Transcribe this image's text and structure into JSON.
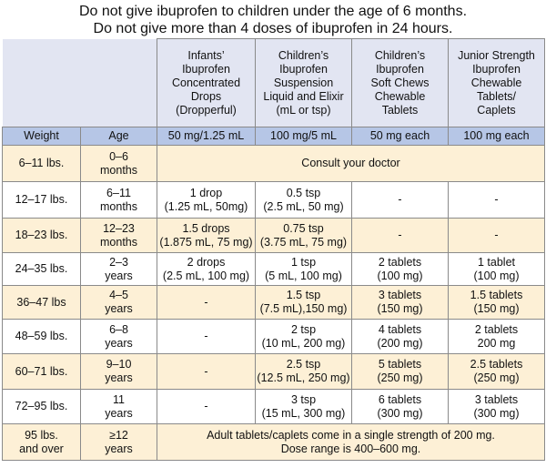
{
  "notes": [
    "Do not give ibuprofen to children under the age of 6 months.",
    "Do not give more than 4 doses of ibuprofen in 24 hours."
  ],
  "table": {
    "header": [
      [
        "Infants’",
        "Ibuprofen",
        "Concentrated",
        "Drops",
        "(Dropperful)"
      ],
      [
        "Children’s",
        "Ibuprofen",
        "Suspension",
        "Liquid and Elixir",
        "(mL or tsp)"
      ],
      [
        "Children’s",
        "Ibuprofen",
        "Soft Chews",
        "Chewable",
        "Tablets"
      ],
      [
        "Junior Strength",
        "Ibuprofen",
        "Chewable",
        "Tablets/",
        "Caplets"
      ]
    ],
    "units": [
      "Weight",
      "Age",
      "50 mg/1.25 mL",
      "100 mg/5 mL",
      "50 mg each",
      "100 mg each"
    ],
    "rows": [
      {
        "weight": [
          "6–11 lbs."
        ],
        "age": [
          "0–6",
          "months"
        ],
        "doses": [
          [
            "Consult your doctor"
          ]
        ]
      },
      {
        "weight": [
          "12–17 lbs."
        ],
        "age": [
          "6–11",
          "months"
        ],
        "doses": [
          [
            "1 drop",
            "(1.25 mL, 50mg)"
          ],
          [
            "0.5 tsp",
            "(2.5 mL, 50 mg)"
          ],
          [
            "-"
          ],
          [
            "-"
          ]
        ]
      },
      {
        "weight": [
          "18–23 lbs."
        ],
        "age": [
          "12–23",
          "months"
        ],
        "doses": [
          [
            "1.5 drops",
            "(1.875 mL, 75 mg)"
          ],
          [
            "0.75 tsp",
            "(3.75 mL, 75 mg)"
          ],
          [
            "-"
          ],
          [
            "-"
          ]
        ]
      },
      {
        "weight": [
          "24–35 lbs."
        ],
        "age": [
          "2–3",
          "years"
        ],
        "doses": [
          [
            "2 drops",
            "(2.5 mL, 100 mg)"
          ],
          [
            "1 tsp",
            "(5 mL, 100 mg)"
          ],
          [
            "2 tablets",
            "(100 mg)"
          ],
          [
            "1 tablet",
            "(100 mg)"
          ]
        ]
      },
      {
        "weight": [
          "36–47 lbs"
        ],
        "age": [
          "4–5",
          "years"
        ],
        "doses": [
          [
            "-"
          ],
          [
            "1.5 tsp",
            "(7.5 mL),150 mg)"
          ],
          [
            "3 tablets",
            "(150 mg)"
          ],
          [
            "1.5 tablets",
            "(150 mg)"
          ]
        ]
      },
      {
        "weight": [
          "48–59 lbs."
        ],
        "age": [
          "6–8",
          "years"
        ],
        "doses": [
          [
            "-"
          ],
          [
            "2 tsp",
            "(10 mL, 200 mg)"
          ],
          [
            "4 tablets",
            "(200 mg)"
          ],
          [
            "2 tablets",
            "200 mg"
          ]
        ]
      },
      {
        "weight": [
          "60–71 lbs."
        ],
        "age": [
          "9–10",
          "years"
        ],
        "doses": [
          [
            "-"
          ],
          [
            "2.5 tsp",
            "(12.5 mL, 250 mg)"
          ],
          [
            "5 tablets",
            "(250 mg)"
          ],
          [
            "2.5 tablets",
            "(250 mg)"
          ]
        ]
      },
      {
        "weight": [
          "72–95 lbs."
        ],
        "age": [
          "11",
          "years"
        ],
        "doses": [
          [
            "-"
          ],
          [
            "3 tsp",
            "(15 mL, 300 mg)"
          ],
          [
            "6 tablets",
            "(300 mg)"
          ],
          [
            "3 tablets",
            "(300 mg)"
          ]
        ]
      },
      {
        "weight": [
          "95 lbs.",
          "and over"
        ],
        "age": [
          "≥12",
          "years"
        ],
        "doses": [
          [
            "Adult tablets/caplets come in a single strength of 200 mg.",
            "Dose range is 400–600 mg."
          ]
        ]
      }
    ]
  }
}
